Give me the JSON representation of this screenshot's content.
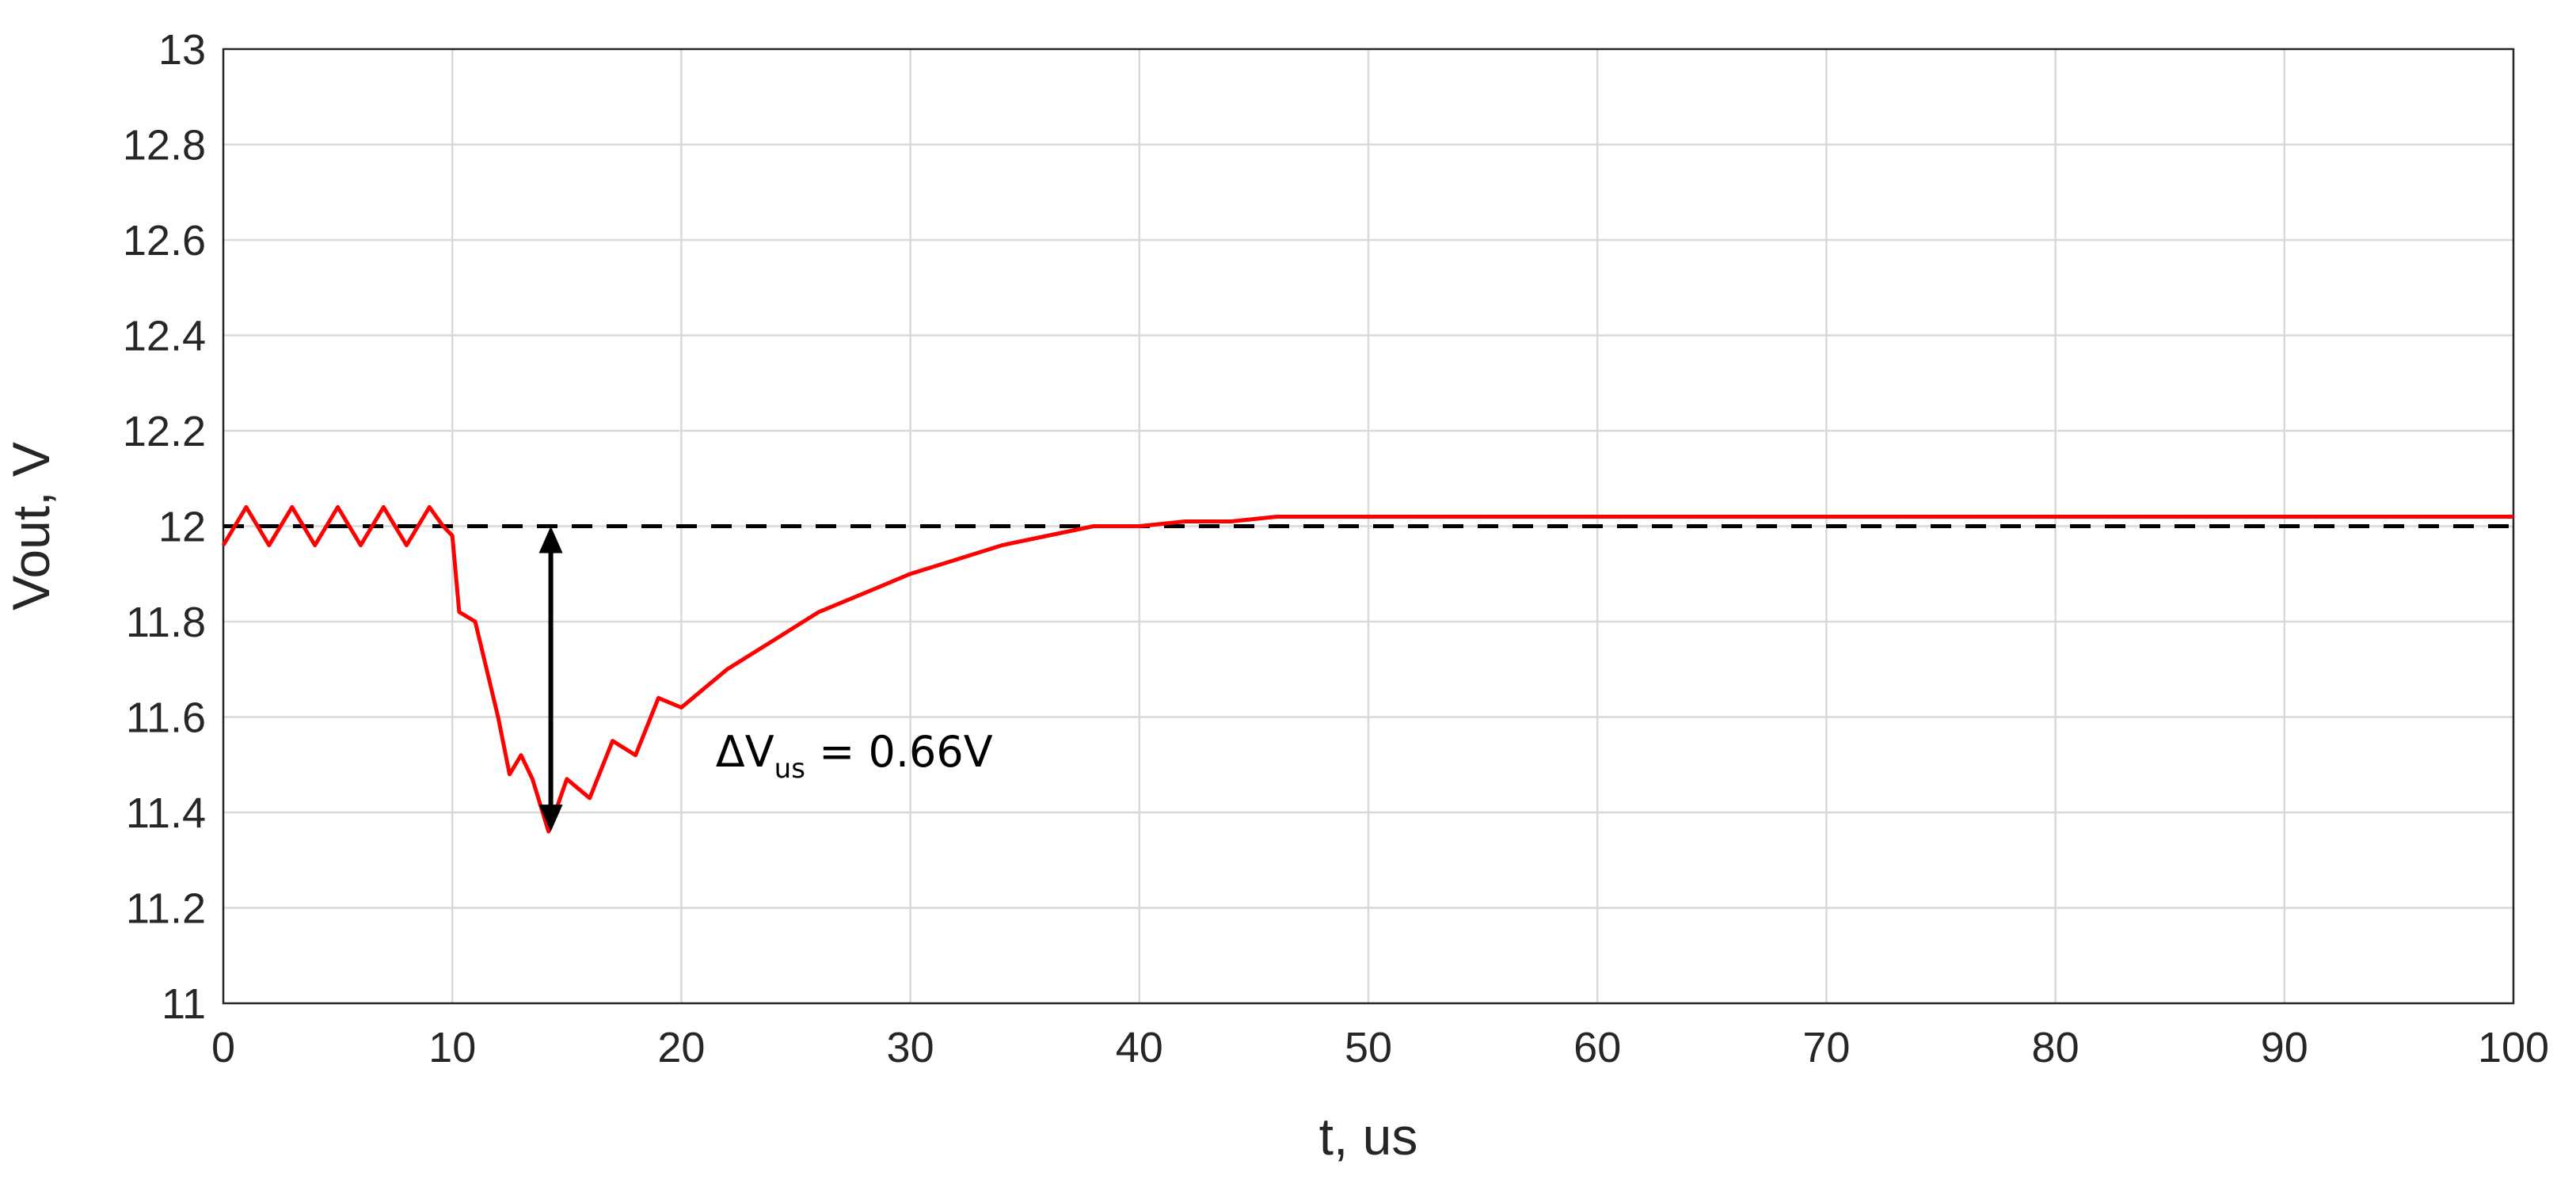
{
  "chart_data": {
    "type": "line",
    "title": "",
    "xlabel": "t, us",
    "ylabel": "Vout, V",
    "xlim": [
      0,
      100
    ],
    "ylim": [
      11,
      13
    ],
    "xticks": [
      0,
      10,
      20,
      30,
      40,
      50,
      60,
      70,
      80,
      90,
      100
    ],
    "yticks": [
      11,
      11.2,
      11.4,
      11.6,
      11.8,
      12,
      12.2,
      12.4,
      12.6,
      12.8,
      13
    ],
    "xtick_labels": [
      "0",
      "10",
      "20",
      "30",
      "40",
      "50",
      "60",
      "70",
      "80",
      "90",
      "100"
    ],
    "ytick_labels": [
      "11",
      "11.2",
      "11.4",
      "11.6",
      "11.8",
      "12",
      "12.2",
      "12.4",
      "12.6",
      "12.8",
      "13"
    ],
    "grid": true,
    "series": [
      {
        "color": "#ff0000",
        "x": [
          0,
          1,
          2,
          3,
          4,
          5,
          6,
          7,
          8,
          9,
          9.6,
          10,
          10.3,
          11,
          12,
          12.5,
          13,
          13.5,
          14.2,
          15,
          16,
          17,
          18,
          19,
          20,
          22,
          24,
          26,
          28,
          30,
          32,
          34,
          36,
          38,
          40,
          42,
          44,
          46,
          48,
          50,
          55,
          60,
          65,
          70,
          75,
          80,
          85,
          90,
          95,
          100
        ],
        "y": [
          11.96,
          12.04,
          11.96,
          12.04,
          11.96,
          12.04,
          11.96,
          12.04,
          11.96,
          12.04,
          12.0,
          11.98,
          11.82,
          11.8,
          11.6,
          11.48,
          11.52,
          11.47,
          11.36,
          11.47,
          11.43,
          11.55,
          11.52,
          11.64,
          11.62,
          11.7,
          11.76,
          11.82,
          11.86,
          11.9,
          11.93,
          11.96,
          11.98,
          12.0,
          12.0,
          12.01,
          12.01,
          12.02,
          12.02,
          12.02,
          12.02,
          12.02,
          12.02,
          12.02,
          12.02,
          12.02,
          12.02,
          12.02,
          12.02,
          12.02
        ]
      }
    ],
    "reference_line": {
      "y": 12,
      "style": "dashed",
      "color": "#000000"
    },
    "annotation": {
      "text_main": "ΔV",
      "text_sub": "us",
      "text_value": " = 0.66V",
      "arrow_x": 14.3,
      "arrow_y_from": 11.36,
      "arrow_y_to": 12.0
    }
  }
}
